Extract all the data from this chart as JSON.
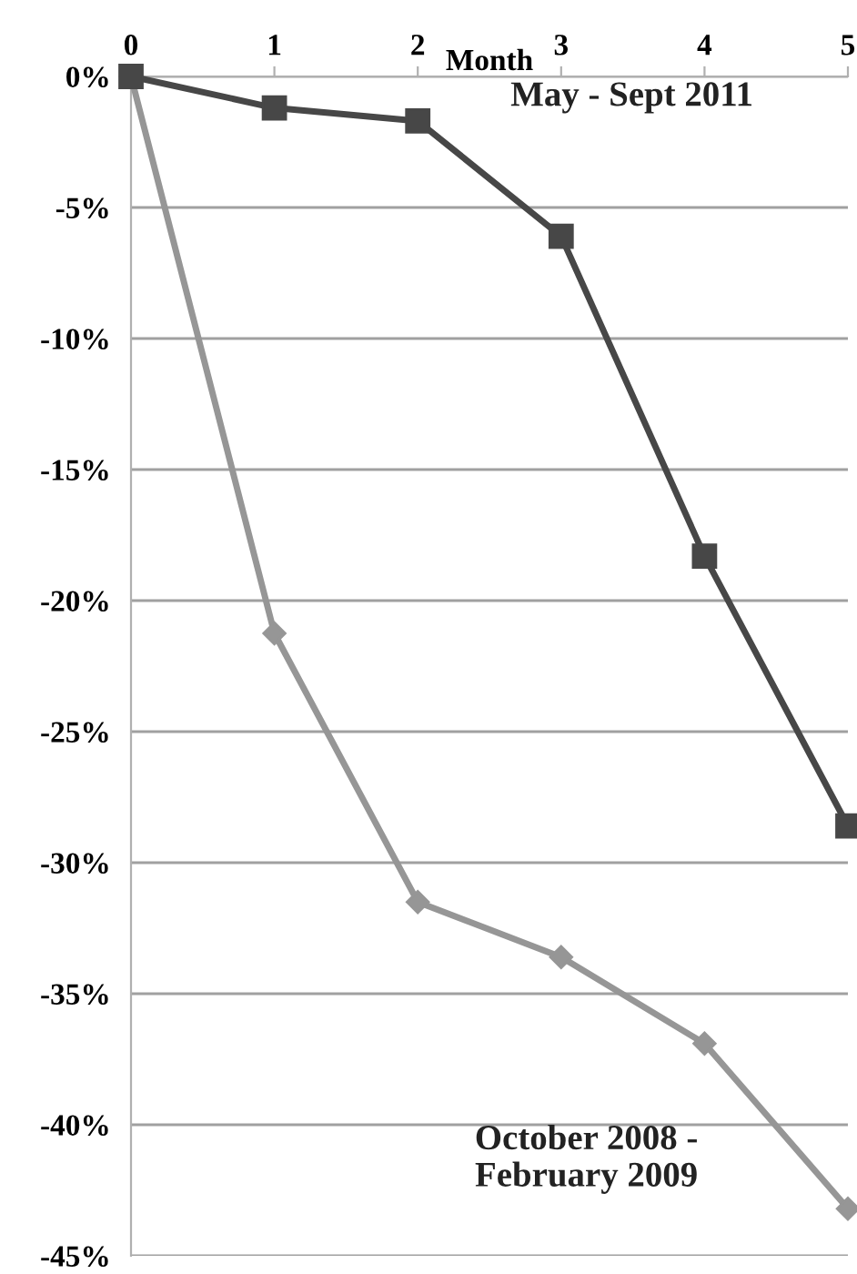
{
  "chart_data": {
    "type": "line",
    "xlabel": "Month",
    "x": [
      0,
      1,
      2,
      3,
      4,
      5
    ],
    "series": [
      {
        "name": "May - Sept 2011",
        "color": "#474747",
        "marker": "square",
        "values": [
          0,
          -1.2,
          -1.7,
          -6.1,
          -18.3,
          -28.6
        ]
      },
      {
        "name": "October 2008 - February 2009",
        "color": "#969696",
        "marker": "diamond",
        "values": [
          0,
          -21.25,
          -31.5,
          -33.6,
          -36.9,
          -43.2
        ]
      }
    ],
    "xlim": [
      0,
      5
    ],
    "xticks": [
      0,
      1,
      2,
      3,
      4,
      5
    ],
    "ylim": [
      -45,
      0
    ],
    "yticks": [
      {
        "value": 0,
        "label": "0%"
      },
      {
        "value": -5,
        "label": "-5%"
      },
      {
        "value": -10,
        "label": "-10%"
      },
      {
        "value": -15,
        "label": "-15%"
      },
      {
        "value": -20,
        "label": "-20%"
      },
      {
        "value": -25,
        "label": "-25%"
      },
      {
        "value": -30,
        "label": "-30%"
      },
      {
        "value": -35,
        "label": "-35%"
      },
      {
        "value": -40,
        "label": "-40%"
      },
      {
        "value": -45,
        "label": "-45%"
      }
    ],
    "grid": "y",
    "legend": false
  }
}
